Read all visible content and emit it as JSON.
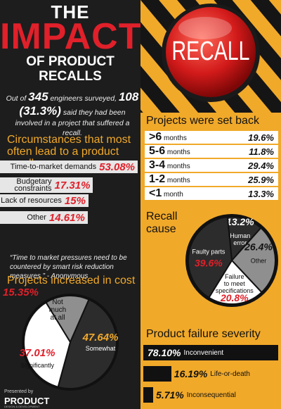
{
  "header": {
    "the": "THE",
    "impact": "IMPACT",
    "of_line1": "OF PRODUCT",
    "of_line2": "RECALLS"
  },
  "intro": {
    "part1": "Out of ",
    "total": "345",
    "part2": " engineers surveyed, ",
    "involved": "108 (31.3%)",
    "part3": " said they had been involved in a project that suffered a recall."
  },
  "recall_badge": "RECALL",
  "colors": {
    "accent": "#f1a92a",
    "red": "#e0202a",
    "dark": "#1d1d1d",
    "light": "#e6e6e6"
  },
  "footer": {
    "presented_by": "Presented by",
    "brand": "PRODUCT",
    "brand_sub": "DESIGN & DEVELOPMENT"
  },
  "quote": "“Time to market pressures need to be countered by smart risk reduction measures.” - Anonymous",
  "chart_data": [
    {
      "type": "bar",
      "title": "Circumstances that most often lead to a product recall",
      "categories": [
        "Time-to-market demands",
        "Budgetary constraints",
        "Lack of resources",
        "Other"
      ],
      "values": [
        53.08,
        17.31,
        15,
        14.61
      ],
      "labels": [
        "53.08%",
        "17.31%",
        "15%",
        "14.61%"
      ]
    },
    {
      "type": "bar",
      "title": "Projects were set back",
      "categories": [
        ">6 months",
        "5-6 months",
        "3-4 months",
        "1-2 months",
        "<1 month"
      ],
      "cat_big": [
        ">6",
        "5-6",
        "3-4",
        "1-2",
        "<1"
      ],
      "cat_small": [
        "months",
        "months",
        "months",
        "months",
        "month"
      ],
      "values": [
        19.6,
        11.8,
        29.4,
        25.9,
        13.3
      ],
      "labels": [
        "19.6%",
        "11.8%",
        "29.4%",
        "25.9%",
        "13.3%"
      ]
    },
    {
      "type": "pie",
      "title": "Recall cause",
      "categories": [
        "Human error",
        "Other",
        "Failure to meet specifications",
        "Faulty parts"
      ],
      "values": [
        13.2,
        26.4,
        20.8,
        39.6
      ],
      "labels": [
        "13.2%",
        "26.4%",
        "20.8%",
        "39.6%"
      ]
    },
    {
      "type": "pie",
      "title": "Projects increased in cost",
      "categories": [
        "Not much at all",
        "Somewhat",
        "Significantly"
      ],
      "values": [
        15.35,
        47.64,
        37.01
      ],
      "labels": [
        "15.35%",
        "47.64%",
        "37.01%"
      ]
    },
    {
      "type": "bar",
      "title": "Product failure severity",
      "categories": [
        "Inconvenient",
        "Life-or-death",
        "Inconsequential"
      ],
      "values": [
        78.1,
        16.19,
        5.71
      ],
      "labels": [
        "78.10%",
        "16.19%",
        "5.71%"
      ]
    }
  ]
}
